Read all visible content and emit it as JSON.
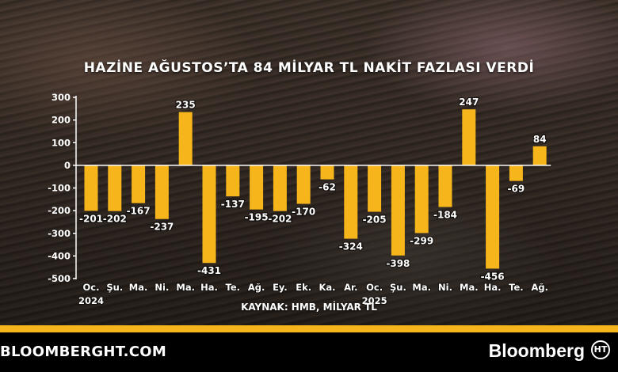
{
  "header": {
    "title": "HAZİNE AĞUSTOS’TA 84 MİLYAR TL NAKİT FAZLASI VERDİ"
  },
  "chart_data": {
    "type": "bar",
    "title": "HAZİNE AĞUSTOS’TA 84 MİLYAR TL NAKİT FAZLASI VERDİ",
    "xlabel": "",
    "ylabel": "",
    "categories": [
      "Oc.",
      "Şu.",
      "Ma.",
      "Ni.",
      "Ma.",
      "Ha.",
      "Te.",
      "Ağ.",
      "Ey.",
      "Ek.",
      "Ka.",
      "Ar.",
      "Oc.",
      "Şu.",
      "Ma.",
      "Ni.",
      "Ma.",
      "Ha.",
      "Te.",
      "Ağ."
    ],
    "values": [
      -201,
      -202,
      -167,
      -237,
      235,
      -431,
      -137,
      -195,
      -202,
      -170,
      -62,
      -324,
      -205,
      -398,
      -299,
      -184,
      247,
      -456,
      -69,
      84
    ],
    "value_labels": [
      "-201",
      "-202",
      "-167",
      "-237",
      "235",
      "-431",
      "-137",
      "-195",
      "-202",
      "-170",
      "-62",
      "-324",
      "-205",
      "-398",
      "-299",
      "-184",
      "247",
      "-456",
      "-69",
      "84"
    ],
    "year_labels": [
      {
        "index": 0,
        "label": "2024"
      },
      {
        "index": 12,
        "label": "2025"
      }
    ],
    "ylim": [
      -500,
      300
    ],
    "yticks": [
      300,
      200,
      100,
      0,
      -100,
      -200,
      -300,
      -400,
      -500
    ],
    "ytick_labels": [
      "300",
      "200",
      "100",
      "0",
      "-100",
      "-200",
      "-300",
      "-400",
      "-500"
    ],
    "grid": false,
    "bar_color": "#f5b51b",
    "text_color": "#ffffff"
  },
  "source": {
    "text": "KAYNAK: HMB, MİLYAR TL"
  },
  "footer": {
    "site": "BLOOMBERGHT.COM",
    "brand": "Bloomberg",
    "logo_text": "HT"
  },
  "colors": {
    "accent": "#f5b51b",
    "footer_bg": "#000000"
  }
}
